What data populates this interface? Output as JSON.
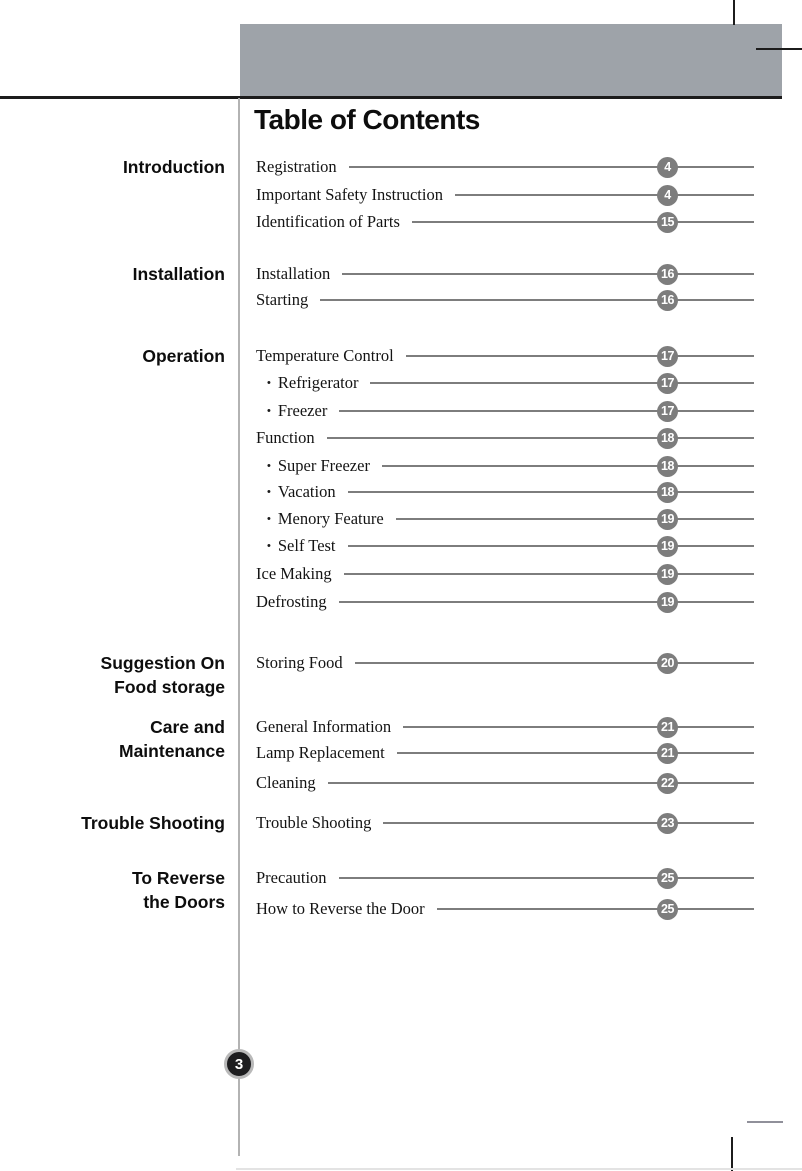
{
  "page": {
    "title": "Table of Contents",
    "page_number": "3"
  },
  "colors": {
    "banner_gray": "#9ea3a9",
    "badge_gray": "#7d7d7d",
    "rule_black": "#1c1c1c",
    "leader_gray": "#7d7d7d",
    "page_badge_fill": "#1d1d1f",
    "page_badge_ring": "#b9b9b9"
  },
  "sidebar_sections": [
    {
      "id": "introduction",
      "lines": [
        "Introduction"
      ]
    },
    {
      "id": "installation",
      "lines": [
        "Installation"
      ]
    },
    {
      "id": "operation",
      "lines": [
        "Operation"
      ]
    },
    {
      "id": "suggestion-on-food-storage",
      "lines": [
        "Suggestion On",
        "Food storage"
      ]
    },
    {
      "id": "care-and-maintenance",
      "lines": [
        "Care and",
        "Maintenance"
      ]
    },
    {
      "id": "trouble-shooting",
      "lines": [
        "Trouble Shooting"
      ]
    },
    {
      "id": "to-reverse-the-doors",
      "lines": [
        "To Reverse",
        "the Doors"
      ]
    }
  ],
  "toc": {
    "bullet": "•",
    "entries": [
      {
        "label": "Registration",
        "page": "4",
        "level": 1
      },
      {
        "label": "Important Safety Instruction",
        "page": "4",
        "level": 1
      },
      {
        "label": "Identification of Parts",
        "page": "15",
        "level": 1
      },
      {
        "label": "Installation",
        "page": "16",
        "level": 1
      },
      {
        "label": "Starting",
        "page": "16",
        "level": 1
      },
      {
        "label": "Temperature Control",
        "page": "17",
        "level": 1
      },
      {
        "label": "Refrigerator",
        "page": "17",
        "level": 2
      },
      {
        "label": "Freezer",
        "page": "17",
        "level": 2
      },
      {
        "label": "Function",
        "page": "18",
        "level": 1
      },
      {
        "label": "Super Freezer",
        "page": "18",
        "level": 2
      },
      {
        "label": "Vacation",
        "page": "18",
        "level": 2
      },
      {
        "label": "Menory Feature",
        "page": "19",
        "level": 2
      },
      {
        "label": "Self Test",
        "page": "19",
        "level": 2
      },
      {
        "label": "Ice Making",
        "page": "19",
        "level": 1
      },
      {
        "label": "Defrosting",
        "page": "19",
        "level": 1
      },
      {
        "label": "Storing Food",
        "page": "20",
        "level": 1
      },
      {
        "label": "General Information",
        "page": "21",
        "level": 1
      },
      {
        "label": "Lamp Replacement",
        "page": "21",
        "level": 1
      },
      {
        "label": "Cleaning",
        "page": "22",
        "level": 1
      },
      {
        "label": "Trouble Shooting",
        "page": "23",
        "level": 1
      },
      {
        "label": "Precaution",
        "page": "25",
        "level": 1
      },
      {
        "label": "How to Reverse the Door",
        "page": "25",
        "level": 1
      }
    ]
  }
}
